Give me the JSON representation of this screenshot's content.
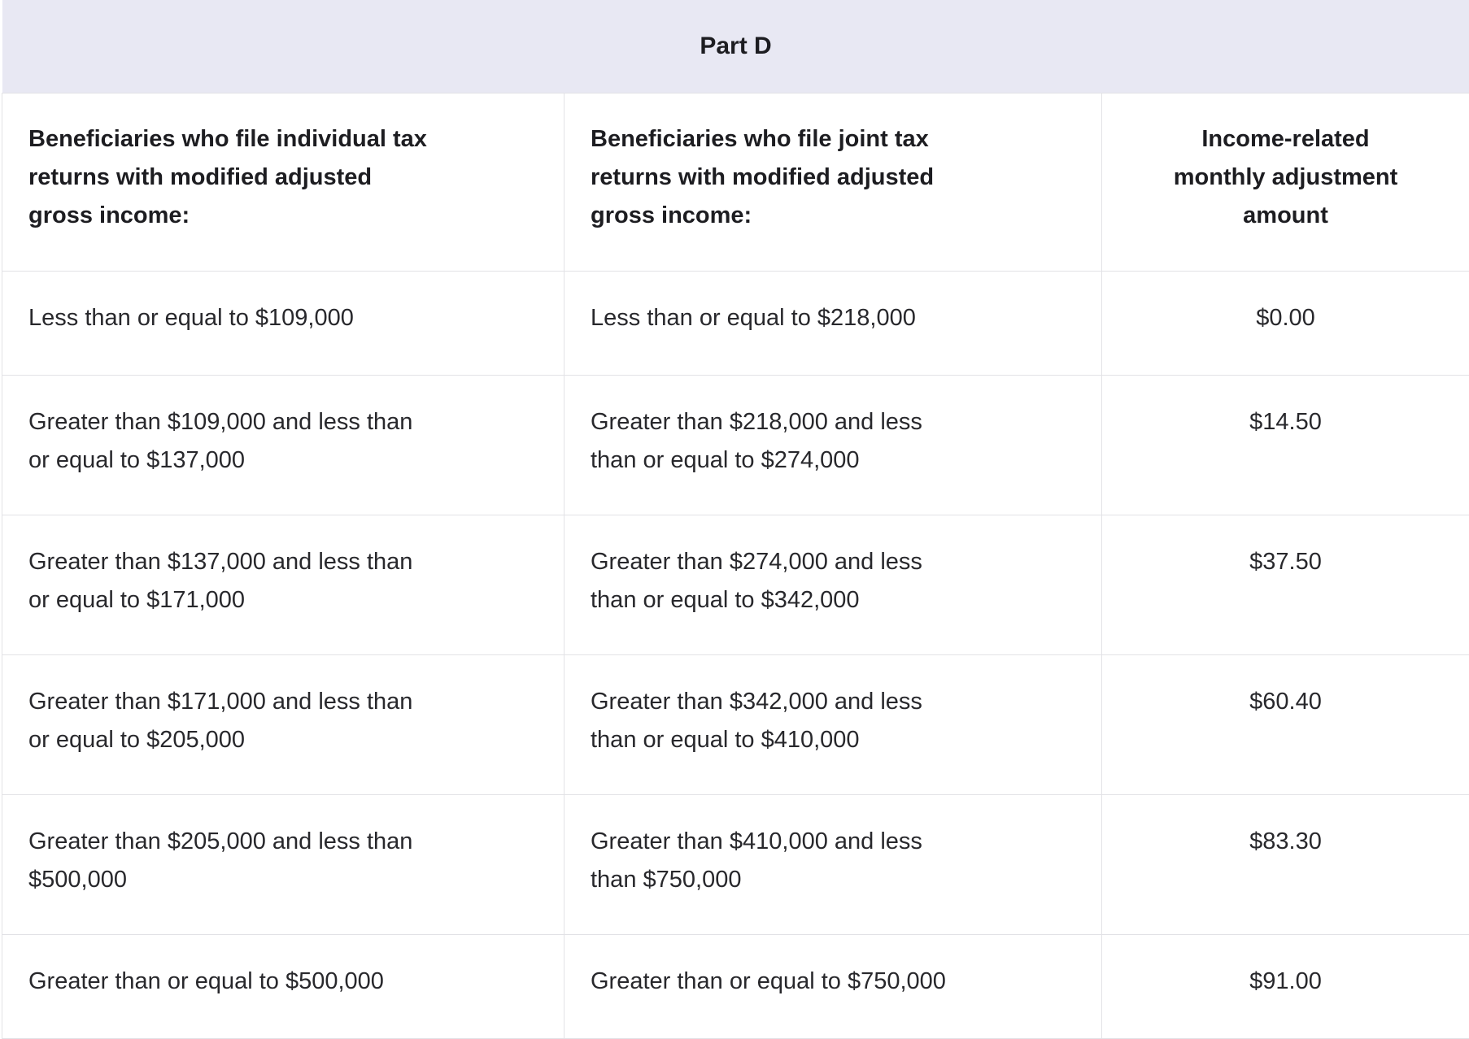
{
  "colors": {
    "band_background": "#e8e8f3",
    "grid_border": "#e2e2e6",
    "header_text": "#1d1d21",
    "body_text": "#28282c"
  },
  "table": {
    "band_title": "Part D",
    "column_headers": {
      "individual": "Beneficiaries who file individual tax\nreturns with modified adjusted\ngross income:",
      "joint": "Beneficiaries who file joint tax\nreturns with modified adjusted\ngross income:",
      "amount": "Income-related\nmonthly adjustment\namount"
    },
    "rows": [
      {
        "individual": "Less than or equal to $109,000",
        "joint": "Less than or equal to $218,000",
        "amount": "$0.00"
      },
      {
        "individual": "Greater than $109,000 and less than\nor equal to $137,000",
        "joint": "Greater than $218,000 and less\nthan or equal to $274,000",
        "amount": "$14.50"
      },
      {
        "individual": "Greater than $137,000 and less than\nor equal to $171,000",
        "joint": "Greater than $274,000 and less\nthan or equal to $342,000",
        "amount": "$37.50"
      },
      {
        "individual": "Greater than $171,000 and less than\nor equal to $205,000",
        "joint": "Greater than $342,000 and less\nthan or equal to $410,000",
        "amount": "$60.40"
      },
      {
        "individual": "Greater than $205,000 and less than\n$500,000",
        "joint": "Greater than $410,000 and less\nthan $750,000",
        "amount": "$83.30"
      },
      {
        "individual": "Greater than or equal to $500,000",
        "joint": "Greater than or equal to $750,000",
        "amount": "$91.00"
      }
    ]
  }
}
